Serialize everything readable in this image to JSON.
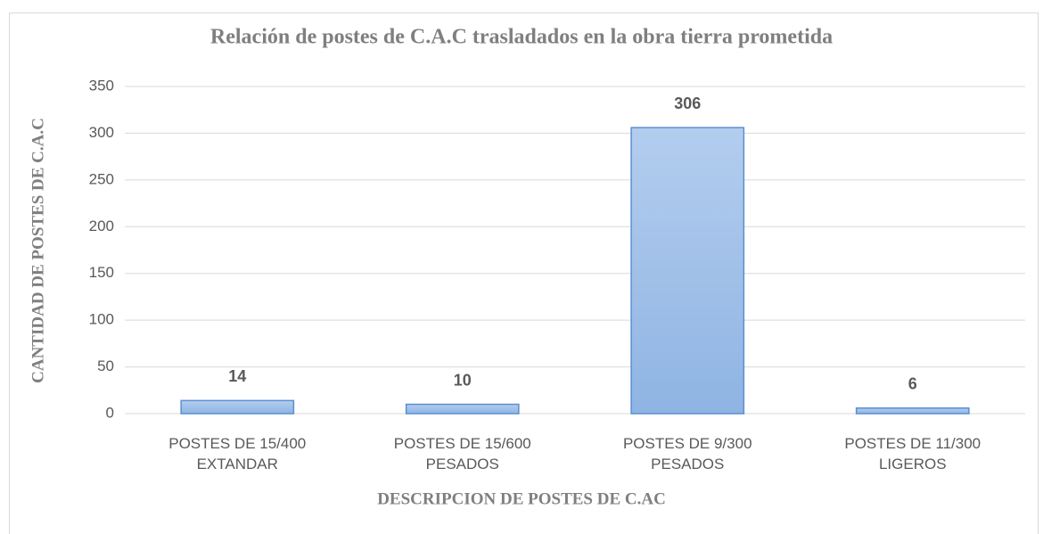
{
  "chart_data": {
    "type": "bar",
    "title": "Relación de postes de C.A.C trasladados en la obra tierra prometida",
    "x_label": "DESCRIPCION  DE POSTES DE C.AC",
    "y_label": "CANTIDAD DE POSTES DE C.A.C",
    "categories": [
      "POSTES DE  15/400\nEXTANDAR",
      "POSTES DE  15/600\nPESADOS",
      "POSTES DE  9/300\nPESADOS",
      "POSTES DE  11/300\nLIGEROS"
    ],
    "values": [
      14,
      10,
      306,
      6
    ],
    "color": "#9dbde6",
    "ylim": [
      0,
      350
    ],
    "yticks": [
      0,
      50,
      100,
      150,
      200,
      250,
      300,
      350
    ],
    "grid": true
  }
}
